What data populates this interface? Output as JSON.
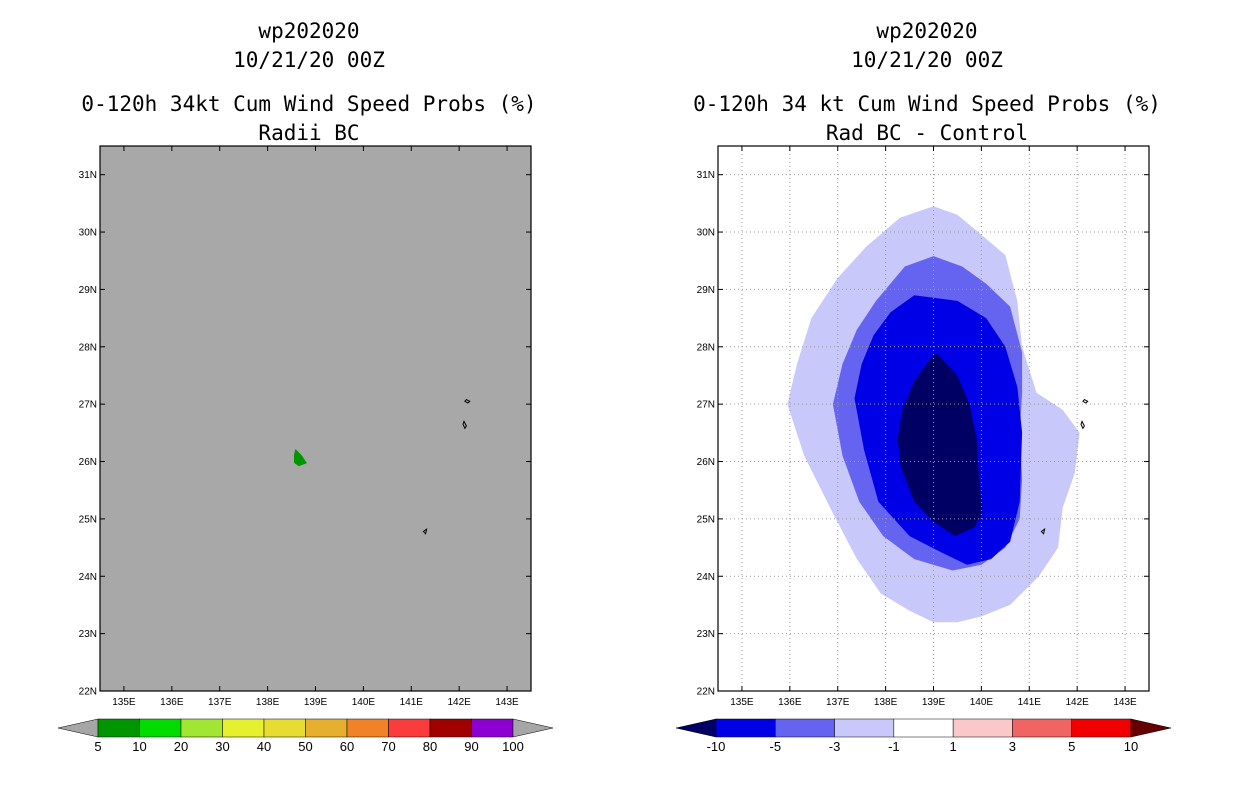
{
  "chart_data": [
    {
      "type": "heatmap",
      "storm_id": "wp202020",
      "datetime": "10/21/20 00Z",
      "title": "0-120h 34kt Cum Wind Speed Probs (%)",
      "subtitle": "Radii BC",
      "x_ticks": [
        "135E",
        "136E",
        "137E",
        "138E",
        "139E",
        "140E",
        "141E",
        "142E",
        "143E"
      ],
      "y_ticks": [
        "22N",
        "23N",
        "24N",
        "25N",
        "26N",
        "27N",
        "28N",
        "29N",
        "30N",
        "31N"
      ],
      "xlim": [
        134.5,
        143.5
      ],
      "ylim": [
        22,
        31.5
      ],
      "grid": false,
      "colorbar": {
        "labels": [
          "5",
          "10",
          "20",
          "30",
          "40",
          "50",
          "60",
          "70",
          "80",
          "90",
          "100"
        ],
        "colors": [
          "#009600",
          "#00dc00",
          "#a0e632",
          "#e6f02e",
          "#e6dc32",
          "#e6af2d",
          "#f08228",
          "#fa3c3c",
          "#a00000",
          "#8c00d2"
        ],
        "under_color": "#a6a6a6",
        "over_color": "#a6a6a6"
      },
      "background_color": "#a8a8a8",
      "contours": [
        {
          "level": "5-10",
          "color": "#009600",
          "polygon": [
            [
              138.58,
              26.22
            ],
            [
              138.72,
              26.1
            ],
            [
              138.82,
              25.97
            ],
            [
              138.65,
              25.92
            ],
            [
              138.55,
              25.98
            ],
            [
              138.55,
              26.12
            ]
          ]
        }
      ],
      "land": [
        [
          [
            142.15,
            27.08
          ],
          [
            142.22,
            27.05
          ],
          [
            142.18,
            27.02
          ],
          [
            142.12,
            27.05
          ]
        ],
        [
          [
            142.1,
            26.7
          ],
          [
            142.15,
            26.62
          ],
          [
            142.12,
            26.58
          ],
          [
            142.08,
            26.65
          ]
        ],
        [
          [
            141.25,
            24.78
          ],
          [
            141.32,
            24.82
          ],
          [
            141.3,
            24.74
          ]
        ]
      ]
    },
    {
      "type": "heatmap",
      "storm_id": "wp202020",
      "datetime": "10/21/20 00Z",
      "title": "0-120h 34 kt Cum Wind Speed Probs (%)",
      "subtitle": "Rad BC - Control",
      "x_ticks": [
        "135E",
        "136E",
        "137E",
        "138E",
        "139E",
        "140E",
        "141E",
        "142E",
        "143E"
      ],
      "y_ticks": [
        "22N",
        "23N",
        "24N",
        "25N",
        "26N",
        "27N",
        "28N",
        "29N",
        "30N",
        "31N"
      ],
      "xlim": [
        134.5,
        143.5
      ],
      "ylim": [
        22,
        31.5
      ],
      "grid": true,
      "colorbar": {
        "labels": [
          "-10",
          "-5",
          "-3",
          "-1",
          "1",
          "3",
          "5",
          "10"
        ],
        "colors": [
          "#0000e6",
          "#6464f0",
          "#c8c8fa",
          "#ffffff",
          "#fac8c8",
          "#f06464",
          "#f00000"
        ],
        "under_color": "#000064",
        "over_color": "#640000"
      },
      "background_color": "#ffffff",
      "contours": [
        {
          "level": "-3 to -1",
          "color": "#c8c8fa",
          "polygon": [
            [
              139,
              30.45
            ],
            [
              139.5,
              30.3
            ],
            [
              140,
              29.95
            ],
            [
              140.5,
              29.6
            ],
            [
              140.75,
              28.8
            ],
            [
              140.85,
              28
            ],
            [
              141.15,
              27.2
            ],
            [
              141.7,
              26.9
            ],
            [
              142.05,
              26.5
            ],
            [
              141.95,
              25.8
            ],
            [
              141.7,
              25.2
            ],
            [
              141.6,
              24.5
            ],
            [
              141.2,
              24
            ],
            [
              140.6,
              23.5
            ],
            [
              140,
              23.3
            ],
            [
              139.5,
              23.2
            ],
            [
              139,
              23.2
            ],
            [
              138.5,
              23.4
            ],
            [
              137.9,
              23.7
            ],
            [
              137.4,
              24.3
            ],
            [
              136.9,
              25.1
            ],
            [
              136.3,
              26.1
            ],
            [
              135.95,
              27
            ],
            [
              136.15,
              27.7
            ],
            [
              136.45,
              28.5
            ],
            [
              137,
              29.2
            ],
            [
              137.6,
              29.75
            ],
            [
              138.3,
              30.25
            ]
          ]
        },
        {
          "level": "-5 to -3",
          "color": "#6464f0",
          "polygon": [
            [
              139,
              29.58
            ],
            [
              139.6,
              29.4
            ],
            [
              140.1,
              29.1
            ],
            [
              140.6,
              28.7
            ],
            [
              140.85,
              27.9
            ],
            [
              140.85,
              27.2
            ],
            [
              140.8,
              26.5
            ],
            [
              140.85,
              25.7
            ],
            [
              140.8,
              25
            ],
            [
              140.5,
              24.5
            ],
            [
              140,
              24.2
            ],
            [
              139.4,
              24.1
            ],
            [
              138.6,
              24.3
            ],
            [
              137.95,
              24.7
            ],
            [
              137.45,
              25.3
            ],
            [
              137.1,
              26.1
            ],
            [
              136.9,
              27
            ],
            [
              137.1,
              27.7
            ],
            [
              137.4,
              28.3
            ],
            [
              137.8,
              28.8
            ],
            [
              138.4,
              29.4
            ]
          ]
        },
        {
          "level": "-10 to -5",
          "color": "#0000e6",
          "polygon": [
            [
              138.6,
              28.9
            ],
            [
              139.5,
              28.8
            ],
            [
              140.1,
              28.5
            ],
            [
              140.5,
              28
            ],
            [
              140.75,
              27.3
            ],
            [
              140.85,
              26.5
            ],
            [
              140.8,
              25.3
            ],
            [
              140.6,
              24.6
            ],
            [
              140.2,
              24.3
            ],
            [
              139.7,
              24.2
            ],
            [
              139.2,
              24.4
            ],
            [
              138.5,
              24.7
            ],
            [
              137.85,
              25.3
            ],
            [
              137.55,
              26.2
            ],
            [
              137.35,
              27.1
            ],
            [
              137.5,
              27.7
            ],
            [
              137.75,
              28.2
            ],
            [
              138.1,
              28.6
            ]
          ]
        },
        {
          "level": "<= -10",
          "color": "#000064",
          "polygon": [
            [
              139.05,
              27.9
            ],
            [
              139.5,
              27.5
            ],
            [
              139.75,
              27
            ],
            [
              139.9,
              26.4
            ],
            [
              139.95,
              25.7
            ],
            [
              140.02,
              25.1
            ],
            [
              139.85,
              24.85
            ],
            [
              139.45,
              24.7
            ],
            [
              139,
              24.95
            ],
            [
              138.6,
              25.3
            ],
            [
              138.32,
              25.9
            ],
            [
              138.25,
              26.4
            ],
            [
              138.35,
              26.9
            ],
            [
              138.6,
              27.4
            ],
            [
              138.9,
              27.75
            ]
          ]
        }
      ],
      "land": [
        [
          [
            142.15,
            27.08
          ],
          [
            142.22,
            27.05
          ],
          [
            142.18,
            27.02
          ],
          [
            142.12,
            27.05
          ]
        ],
        [
          [
            142.1,
            26.7
          ],
          [
            142.15,
            26.62
          ],
          [
            142.12,
            26.58
          ],
          [
            142.08,
            26.65
          ]
        ],
        [
          [
            141.25,
            24.78
          ],
          [
            141.32,
            24.82
          ],
          [
            141.3,
            24.74
          ]
        ]
      ]
    }
  ]
}
